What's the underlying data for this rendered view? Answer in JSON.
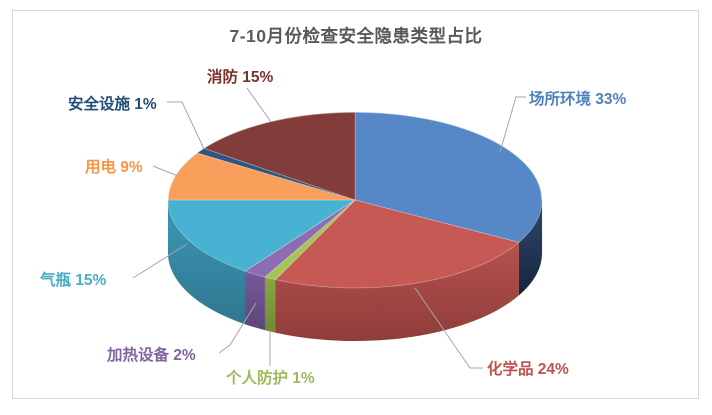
{
  "page": {
    "background_color": "#FFFFFF",
    "frame_border_color": "#D9D9D9"
  },
  "chart_data": {
    "type": "pie",
    "style": "3d",
    "title": "7-10月份检查安全隐患类型占比",
    "title_color": "#595959",
    "start_angle_deg": 0,
    "direction": "clockwise",
    "total_percent": 100,
    "legend_position": "none",
    "label_format": "{label} {value}%",
    "leader_line_color": "#A6A6A6",
    "slices": [
      {
        "id": "site-environment",
        "label": "场所环境",
        "value": 33,
        "unit": "%",
        "color": "#5687C6",
        "label_color": "#4F81BD",
        "side_colors": [
          "#2F4A6F",
          "#16243C"
        ]
      },
      {
        "id": "chemicals",
        "label": "化学品",
        "value": 24,
        "unit": "%",
        "color": "#C75955",
        "label_color": "#C0504D",
        "side_colors": [
          "#B6514E",
          "#8F3D3A"
        ]
      },
      {
        "id": "personal-protection",
        "label": "个人防护",
        "value": 1,
        "unit": "%",
        "color": "#A3C553",
        "label_color": "#9BBB59",
        "side_colors": [
          "#89A842",
          "#6E8A33"
        ]
      },
      {
        "id": "heating-equipment",
        "label": "加热设备",
        "value": 2,
        "unit": "%",
        "color": "#8D6DB1",
        "label_color": "#8064A2",
        "side_colors": [
          "#77589B",
          "#5D4579"
        ]
      },
      {
        "id": "gas-cylinders",
        "label": "气瓶",
        "value": 15,
        "unit": "%",
        "color": "#48B2D3",
        "label_color": "#4BACC6",
        "side_colors": [
          "#3E98B5",
          "#2E7790"
        ]
      },
      {
        "id": "electricity",
        "label": "用电",
        "value": 9,
        "unit": "%",
        "color": "#F99F5B",
        "label_color": "#F79646",
        "side_colors": null
      },
      {
        "id": "safety-facilities",
        "label": "安全设施",
        "value": 1,
        "unit": "%",
        "color": "#2E5480",
        "label_color": "#1F4E79",
        "side_colors": null
      },
      {
        "id": "fire",
        "label": "消防",
        "value": 15,
        "unit": "%",
        "color": "#823C3A",
        "label_color": "#7E302D",
        "side_colors": null
      }
    ]
  }
}
